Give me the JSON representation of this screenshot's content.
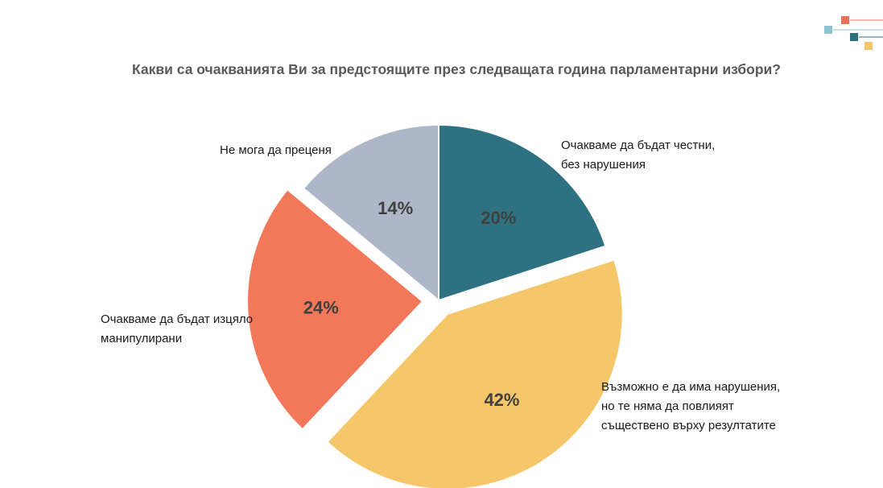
{
  "chart_data": {
    "type": "pie",
    "title": "Какви са очакванията Ви за предстоящите през следващата година парламентарни избори?",
    "start": "12 o'clock",
    "direction": "clockwise",
    "slices": [
      {
        "label": "Очакваме да бъдат честни, без нарушения",
        "value": 20,
        "value_label": "20%",
        "color": "#2e7282",
        "exploded": false
      },
      {
        "label": "Възможно е да има нарушения, но те няма да повлияят съществено върху резултатите",
        "value": 42,
        "value_label": "42%",
        "color": "#f6c66b",
        "exploded": true
      },
      {
        "label": "Очакваме да бъдат изцяло манипулирани",
        "value": 24,
        "value_label": "24%",
        "color": "#f27859",
        "exploded": true
      },
      {
        "label": "Не мога да преценя",
        "value": 14,
        "value_label": "14%",
        "color": "#adb7c8",
        "exploded": false
      }
    ]
  },
  "logo": {
    "colors": [
      "#e8735a",
      "#8fc4cf",
      "#2e6e7e",
      "#f6c66b"
    ]
  }
}
